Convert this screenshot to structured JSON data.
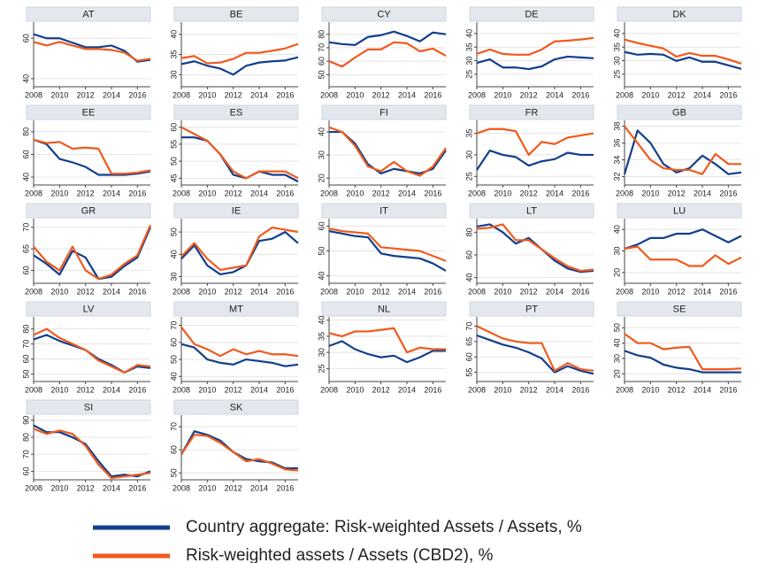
{
  "chart_data": {
    "type": "line",
    "x": [
      2008,
      2009,
      2010,
      2011,
      2012,
      2013,
      2014,
      2015,
      2016,
      2017
    ],
    "xlim": [
      2008,
      2017
    ],
    "xticks": [
      2008,
      2010,
      2012,
      2014,
      2016
    ],
    "grid": true,
    "series": [
      {
        "name": "Country aggregate: Risk-weighted Assets / Assets, %",
        "color": "#123f8c"
      },
      {
        "name": "Risk-weighted assets / Assets (CBD2), %",
        "color": "#f05a1c"
      }
    ],
    "panels": [
      {
        "title": "AT",
        "ylim": [
          36,
          68
        ],
        "yticks": [
          40,
          60
        ],
        "values": [
          [
            62,
            60,
            60,
            57.8,
            55.6,
            55.6,
            56.4,
            53.8,
            48.4,
            49.3
          ],
          [
            58.2,
            56.4,
            58.2,
            56.4,
            54.7,
            54.7,
            54.2,
            52.9,
            48.9,
            49.8
          ]
        ]
      },
      {
        "title": "BE",
        "ylim": [
          27,
          43
        ],
        "yticks": [
          30,
          35,
          40
        ],
        "values": [
          [
            32.6,
            33.3,
            32.2,
            31.5,
            30,
            32.2,
            33,
            33.3,
            33.5,
            34.3
          ],
          [
            34.1,
            34.6,
            32.8,
            33,
            33.9,
            35.4,
            35.4,
            35.9,
            36.5,
            37.6
          ]
        ]
      },
      {
        "title": "CY",
        "ylim": [
          41,
          89
        ],
        "yticks": [
          50,
          60,
          70,
          80
        ],
        "values": [
          [
            74,
            72.7,
            72,
            78,
            79.3,
            82,
            78.7,
            74.7,
            81.3,
            80
          ],
          [
            60,
            56,
            62.7,
            68.7,
            68.7,
            74,
            73.3,
            67.3,
            69.3,
            64
          ]
        ]
      },
      {
        "title": "DE",
        "ylim": [
          20.4,
          44.2
        ],
        "yticks": [
          25,
          30,
          35,
          40
        ],
        "values": [
          [
            29.2,
            30.5,
            27.5,
            27.5,
            26.9,
            27.9,
            30.5,
            31.5,
            31.2,
            30.9
          ],
          [
            32.5,
            34.1,
            32.5,
            32.2,
            32.2,
            34.1,
            37.1,
            37.4,
            37.8,
            38.4
          ]
        ]
      },
      {
        "title": "DK",
        "ylim": [
          20.4,
          44.2
        ],
        "yticks": [
          25,
          30,
          35,
          40
        ],
        "values": [
          [
            33.2,
            32.2,
            32.5,
            32.2,
            29.9,
            31.2,
            29.6,
            29.6,
            28.3,
            27
          ],
          [
            37.8,
            36.5,
            35.5,
            34.5,
            31.5,
            32.8,
            31.8,
            31.8,
            30.5,
            28.9
          ]
        ]
      },
      {
        "title": "EE",
        "ylim": [
          33,
          90
        ],
        "yticks": [
          40,
          60,
          80
        ],
        "values": [
          [
            73,
            69,
            56,
            53,
            49,
            42,
            42,
            42,
            43,
            45
          ],
          [
            73,
            70,
            71,
            65,
            66,
            65,
            43,
            43,
            44,
            46
          ]
        ]
      },
      {
        "title": "ES",
        "ylim": [
          43,
          62
        ],
        "yticks": [
          45,
          50,
          55,
          60
        ],
        "values": [
          [
            57,
            57,
            56,
            52,
            46,
            45,
            47,
            46,
            46,
            44
          ],
          [
            60,
            58,
            56,
            52,
            47,
            45,
            47,
            47,
            47,
            45
          ]
        ]
      },
      {
        "title": "FI",
        "ylim": [
          17,
          45
        ],
        "yticks": [
          20,
          30,
          40
        ],
        "values": [
          [
            40,
            40,
            35,
            26,
            22,
            24,
            23,
            22,
            24,
            32
          ],
          [
            42,
            40,
            34,
            25,
            23,
            27,
            23,
            21,
            25,
            33
          ]
        ]
      },
      {
        "title": "FR",
        "ylim": [
          23,
          38
        ],
        "yticks": [
          25,
          30,
          35
        ],
        "values": [
          [
            26.5,
            31,
            30,
            29.5,
            27.5,
            28.5,
            29,
            30.5,
            30,
            30
          ],
          [
            35,
            36,
            36,
            35.5,
            30,
            33,
            32.5,
            34,
            34.5,
            35
          ]
        ]
      },
      {
        "title": "GB",
        "ylim": [
          31,
          38.7
        ],
        "yticks": [
          32,
          34,
          36,
          38
        ],
        "values": [
          [
            32.3,
            37.5,
            36,
            33.5,
            32.5,
            33,
            34.5,
            33.5,
            32.3,
            32.5
          ],
          [
            38,
            36,
            34,
            33,
            32.8,
            32.8,
            32.3,
            34.7,
            33.5,
            33.5
          ]
        ]
      },
      {
        "title": "GR",
        "ylim": [
          57,
          72
        ],
        "yticks": [
          60,
          65,
          70
        ],
        "values": [
          [
            63.5,
            61.5,
            59,
            64.5,
            63,
            58,
            58.5,
            61,
            63,
            70
          ],
          [
            65.5,
            62,
            60,
            65.5,
            60,
            58,
            59,
            61.5,
            63.5,
            70.5
          ]
        ]
      },
      {
        "title": "IE",
        "ylim": [
          27,
          56
        ],
        "yticks": [
          30,
          40,
          50
        ],
        "values": [
          [
            38,
            44,
            35,
            31,
            32,
            35,
            46,
            47,
            50,
            45
          ],
          [
            39,
            45,
            38,
            33,
            34,
            35,
            48,
            52,
            51,
            50
          ]
        ]
      },
      {
        "title": "IT",
        "ylim": [
          37,
          63
        ],
        "yticks": [
          40,
          50,
          60
        ],
        "values": [
          [
            58,
            57,
            56,
            55.5,
            49,
            48,
            47.5,
            47,
            45,
            42
          ],
          [
            59,
            58,
            57.5,
            57,
            51.5,
            51,
            50.5,
            50,
            48,
            46
          ]
        ]
      },
      {
        "title": "LT",
        "ylim": [
          35,
          92
        ],
        "yticks": [
          40,
          60,
          80
        ],
        "values": [
          [
            85,
            87,
            80,
            70,
            75,
            65,
            55,
            48,
            45,
            46
          ],
          [
            83,
            84,
            87,
            73,
            73,
            65,
            57,
            50,
            46,
            47
          ]
        ]
      },
      {
        "title": "LU",
        "ylim": [
          15,
          45
        ],
        "yticks": [
          20,
          30,
          40
        ],
        "values": [
          [
            31,
            33,
            36,
            36,
            38,
            38,
            40,
            37,
            34,
            37
          ],
          [
            31,
            32,
            26,
            26,
            26,
            23,
            23,
            28,
            24,
            27
          ]
        ]
      },
      {
        "title": "LV",
        "ylim": [
          45,
          88
        ],
        "yticks": [
          50,
          60,
          70,
          80
        ],
        "values": [
          [
            73,
            76,
            72,
            69,
            66,
            60,
            56,
            51,
            55,
            54
          ],
          [
            76,
            80,
            74,
            70,
            66,
            59,
            55,
            51,
            56,
            55
          ]
        ]
      },
      {
        "title": "MT",
        "ylim": [
          37,
          75
        ],
        "yticks": [
          40,
          50,
          60,
          70
        ],
        "values": [
          [
            59,
            57,
            50,
            48,
            47,
            50,
            49,
            48,
            46,
            47
          ],
          [
            69,
            59,
            56,
            52,
            56,
            53,
            55,
            53,
            53,
            52
          ]
        ]
      },
      {
        "title": "NL",
        "ylim": [
          21,
          41
        ],
        "yticks": [
          25,
          30,
          35,
          40
        ],
        "values": [
          [
            32,
            33.5,
            31,
            29.5,
            28.5,
            29,
            27,
            28.5,
            30.5,
            30.5
          ],
          [
            36,
            35,
            36.5,
            36.5,
            37,
            37.5,
            30,
            31.5,
            31,
            31
          ]
        ]
      },
      {
        "title": "PT",
        "ylim": [
          52,
          73
        ],
        "yticks": [
          55,
          60,
          65,
          70
        ],
        "values": [
          [
            67,
            65.5,
            64,
            63,
            61.5,
            59.5,
            55,
            57,
            55.5,
            54.5
          ],
          [
            70,
            68,
            66,
            65,
            64.5,
            64.5,
            55.5,
            58,
            56,
            55.5
          ]
        ]
      },
      {
        "title": "SE",
        "ylim": [
          15,
          57
        ],
        "yticks": [
          20,
          30,
          40,
          50
        ],
        "values": [
          [
            35,
            32,
            30.5,
            26,
            24,
            23,
            21,
            21,
            21,
            21
          ],
          [
            46,
            40,
            40,
            36,
            37,
            37.5,
            23,
            23,
            23,
            23.5
          ]
        ]
      },
      {
        "title": "SI",
        "ylim": [
          55,
          93
        ],
        "yticks": [
          60,
          70,
          80,
          90
        ],
        "values": [
          [
            87,
            83,
            83,
            80,
            76,
            66,
            57,
            58,
            57,
            60
          ],
          [
            85,
            82,
            84,
            82,
            75,
            64,
            56,
            57,
            58,
            59
          ]
        ]
      },
      {
        "title": "SK",
        "ylim": [
          47,
          75
        ],
        "yticks": [
          50,
          60,
          70
        ],
        "values": [
          [
            58,
            68,
            66.5,
            64,
            59,
            56,
            55,
            54.5,
            52,
            52
          ],
          [
            58,
            66.5,
            66,
            63,
            59,
            55,
            56,
            54,
            51.5,
            51
          ]
        ]
      }
    ]
  }
}
